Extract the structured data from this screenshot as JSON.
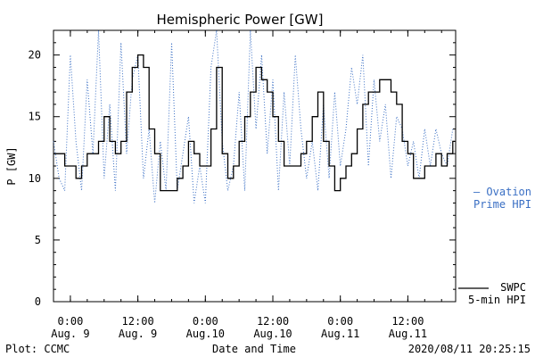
{
  "chart_data": {
    "type": "line",
    "title": "Hemispheric Power [GW]",
    "ylabel": "P [GW]",
    "xlabel": "Date and Time",
    "ylim": [
      0,
      22
    ],
    "yticks": [
      0,
      5,
      10,
      15,
      20
    ],
    "xlim": [
      "2020-08-08 21:00",
      "2020-08-11 20:30"
    ],
    "xticks": [
      {
        "time": "2020-08-09 00:00",
        "line1": "0:00",
        "line2": "Aug. 9"
      },
      {
        "time": "2020-08-09 12:00",
        "line1": "12:00",
        "line2": "Aug. 9"
      },
      {
        "time": "2020-08-10 00:00",
        "line1": "0:00",
        "line2": "Aug.10"
      },
      {
        "time": "2020-08-10 12:00",
        "line1": "12:00",
        "line2": "Aug.10"
      },
      {
        "time": "2020-08-11 00:00",
        "line1": "0:00",
        "line2": "Aug.11"
      },
      {
        "time": "2020-08-11 12:00",
        "line1": "12:00",
        "line2": "Aug.11"
      }
    ],
    "series": [
      {
        "name_line1": "SWPC",
        "name_line2": "5-min HPI",
        "color": "#000000",
        "style": "solid",
        "step": true,
        "x": [
          "2020-08-08 21:00",
          "2020-08-08 23:00",
          "2020-08-09 01:00",
          "2020-08-09 02:00",
          "2020-08-09 03:00",
          "2020-08-09 04:00",
          "2020-08-09 05:00",
          "2020-08-09 06:00",
          "2020-08-09 07:00",
          "2020-08-09 08:00",
          "2020-08-09 09:00",
          "2020-08-09 10:00",
          "2020-08-09 11:00",
          "2020-08-09 12:00",
          "2020-08-09 13:00",
          "2020-08-09 14:00",
          "2020-08-09 15:00",
          "2020-08-09 16:00",
          "2020-08-09 17:00",
          "2020-08-09 18:00",
          "2020-08-09 19:00",
          "2020-08-09 20:00",
          "2020-08-09 21:00",
          "2020-08-09 22:00",
          "2020-08-09 23:00",
          "2020-08-10 00:00",
          "2020-08-10 01:00",
          "2020-08-10 02:00",
          "2020-08-10 03:00",
          "2020-08-10 04:00",
          "2020-08-10 05:00",
          "2020-08-10 06:00",
          "2020-08-10 07:00",
          "2020-08-10 08:00",
          "2020-08-10 09:00",
          "2020-08-10 10:00",
          "2020-08-10 11:00",
          "2020-08-10 12:00",
          "2020-08-10 13:00",
          "2020-08-10 14:00",
          "2020-08-10 15:00",
          "2020-08-10 16:00",
          "2020-08-10 17:00",
          "2020-08-10 18:00",
          "2020-08-10 19:00",
          "2020-08-10 20:00",
          "2020-08-10 21:00",
          "2020-08-10 22:00",
          "2020-08-10 23:00",
          "2020-08-11 00:00",
          "2020-08-11 01:00",
          "2020-08-11 02:00",
          "2020-08-11 03:00",
          "2020-08-11 04:00",
          "2020-08-11 05:00",
          "2020-08-11 06:00",
          "2020-08-11 07:00",
          "2020-08-11 08:00",
          "2020-08-11 09:00",
          "2020-08-11 10:00",
          "2020-08-11 11:00",
          "2020-08-11 12:00",
          "2020-08-11 13:00",
          "2020-08-11 14:00",
          "2020-08-11 15:00",
          "2020-08-11 16:00",
          "2020-08-11 17:00",
          "2020-08-11 18:00",
          "2020-08-11 19:00",
          "2020-08-11 20:00"
        ],
        "y": [
          12,
          11,
          10,
          11,
          12,
          12,
          13,
          15,
          13,
          12,
          13,
          17,
          19,
          20,
          19,
          14,
          12,
          9,
          9,
          9,
          10,
          11,
          13,
          12,
          11,
          11,
          14,
          19,
          12,
          10,
          11,
          13,
          15,
          17,
          19,
          18,
          17,
          15,
          13,
          11,
          11,
          11,
          12,
          13,
          15,
          17,
          13,
          11,
          9,
          10,
          11,
          12,
          14,
          16,
          17,
          17,
          18,
          18,
          17,
          16,
          13,
          12,
          10,
          10,
          11,
          11,
          12,
          11,
          12,
          13
        ]
      },
      {
        "name_line1": "— Ovation",
        "name_line2": "Prime HPI",
        "color": "#3a6fc4",
        "style": "dotted",
        "step": false,
        "x": [
          "2020-08-08 21:00",
          "2020-08-08 22:00",
          "2020-08-08 23:00",
          "2020-08-09 00:00",
          "2020-08-09 01:00",
          "2020-08-09 02:00",
          "2020-08-09 03:00",
          "2020-08-09 04:00",
          "2020-08-09 05:00",
          "2020-08-09 06:00",
          "2020-08-09 07:00",
          "2020-08-09 08:00",
          "2020-08-09 09:00",
          "2020-08-09 10:00",
          "2020-08-09 11:00",
          "2020-08-09 12:00",
          "2020-08-09 13:00",
          "2020-08-09 14:00",
          "2020-08-09 15:00",
          "2020-08-09 16:00",
          "2020-08-09 17:00",
          "2020-08-09 18:00",
          "2020-08-09 19:00",
          "2020-08-09 20:00",
          "2020-08-09 21:00",
          "2020-08-09 22:00",
          "2020-08-09 23:00",
          "2020-08-10 00:00",
          "2020-08-10 01:00",
          "2020-08-10 02:00",
          "2020-08-10 03:00",
          "2020-08-10 04:00",
          "2020-08-10 05:00",
          "2020-08-10 06:00",
          "2020-08-10 07:00",
          "2020-08-10 08:00",
          "2020-08-10 09:00",
          "2020-08-10 10:00",
          "2020-08-10 11:00",
          "2020-08-10 12:00",
          "2020-08-10 13:00",
          "2020-08-10 14:00",
          "2020-08-10 15:00",
          "2020-08-10 16:00",
          "2020-08-10 17:00",
          "2020-08-10 18:00",
          "2020-08-10 19:00",
          "2020-08-10 20:00",
          "2020-08-10 21:00",
          "2020-08-10 22:00",
          "2020-08-10 23:00",
          "2020-08-11 00:00",
          "2020-08-11 01:00",
          "2020-08-11 02:00",
          "2020-08-11 03:00",
          "2020-08-11 04:00",
          "2020-08-11 05:00",
          "2020-08-11 06:00",
          "2020-08-11 07:00",
          "2020-08-11 08:00",
          "2020-08-11 09:00",
          "2020-08-11 10:00",
          "2020-08-11 11:00",
          "2020-08-11 12:00",
          "2020-08-11 13:00",
          "2020-08-11 14:00",
          "2020-08-11 15:00",
          "2020-08-11 16:00",
          "2020-08-11 17:00",
          "2020-08-11 18:00",
          "2020-08-11 19:00",
          "2020-08-11 20:00"
        ],
        "y": [
          13,
          10,
          9,
          20,
          13,
          9,
          18,
          12,
          22,
          10,
          16,
          9,
          21,
          12,
          18,
          20,
          10,
          14,
          8,
          13,
          9,
          21,
          9,
          12,
          15,
          8,
          11,
          8,
          19,
          22,
          13,
          9,
          11,
          17,
          9,
          22,
          14,
          20,
          12,
          18,
          9,
          17,
          11,
          20,
          14,
          10,
          13,
          9,
          16,
          10,
          17,
          11,
          14,
          19,
          16,
          20,
          11,
          18,
          13,
          16,
          10,
          15,
          14,
          11,
          13,
          10,
          14,
          11,
          14,
          12,
          11,
          14
        ]
      }
    ]
  },
  "footer": {
    "plot_label": "Plot: CCMC",
    "timestamp": "2020/08/11 20:25:15"
  }
}
